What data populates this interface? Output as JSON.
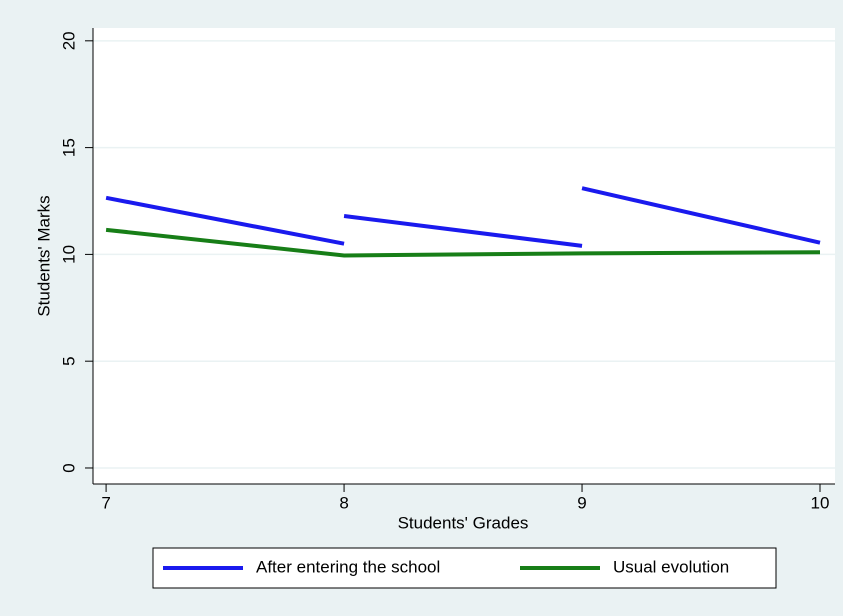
{
  "chart_data": {
    "type": "line",
    "x_label": "Students' Grades",
    "y_label": "Students' Marks",
    "series": [
      {
        "name": "After entering the school",
        "color": "#1a1aee",
        "x": [
          7,
          8,
          null,
          8,
          9,
          null,
          9,
          10
        ],
        "values": [
          12.65,
          10.5,
          null,
          11.8,
          10.4,
          null,
          13.1,
          10.55
        ]
      },
      {
        "name": "Usual evolution",
        "color": "#177e17",
        "x": [
          7,
          8,
          9,
          10
        ],
        "values": [
          11.15,
          9.95,
          10.05,
          10.1
        ]
      }
    ],
    "xlim": [
      6.945,
      10.063
    ],
    "xticks": [
      7,
      8,
      9,
      10
    ],
    "ylim": [
      -0.75,
      20.6
    ],
    "yticks": [
      0,
      5,
      10,
      15,
      20
    ],
    "grid": true,
    "legend": "bottom"
  }
}
